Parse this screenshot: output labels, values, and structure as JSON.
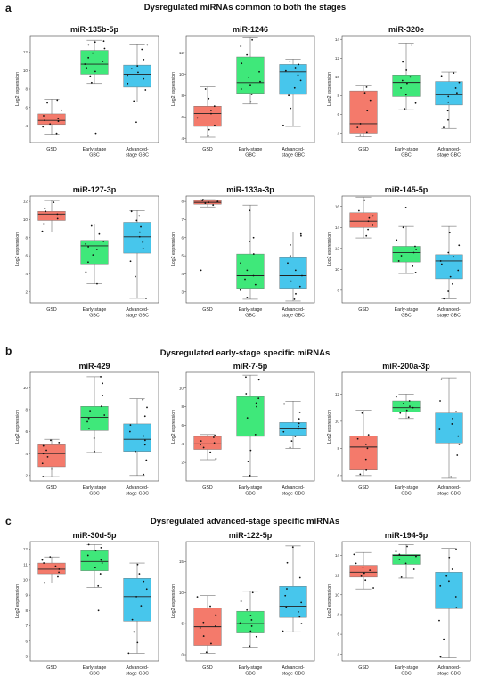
{
  "sections": [
    {
      "letter": "a",
      "title": "Dysregulated miRNAs common to both the stages"
    },
    {
      "letter": "b",
      "title": "Dysregulated early-stage specific miRNAs"
    },
    {
      "letter": "c",
      "title": "Dysregulated advanced-stage specific miRNAs"
    }
  ],
  "chart_common": {
    "ylabel": "Log2 expression",
    "categories": [
      [
        "GSD"
      ],
      [
        "Early-stage",
        "GBC"
      ],
      [
        "Advanced-",
        "stage GBC"
      ]
    ],
    "colors": {
      "GSD": "#f47a6b",
      "Early-stage GBC": "#3fe87a",
      "Advanced-stage GBC": "#47c6ec",
      "median": "#222222",
      "points": "#111111",
      "frame": "#444444"
    }
  },
  "chart_data": [
    {
      "type": "box",
      "title": "miR-135b-5p",
      "ylim": [
        2.2,
        13.8
      ],
      "yticks": [
        4,
        6,
        8,
        10,
        12
      ],
      "boxes": [
        {
          "group": "GSD",
          "min": 3.1,
          "q1": 4.15,
          "median": 4.6,
          "q3": 5.3,
          "max": 6.9,
          "points": [
            3.2,
            3.9,
            4.2,
            4.5,
            4.6,
            4.8,
            5.1,
            5.7,
            6.5,
            6.8
          ]
        },
        {
          "group": "Early-stage GBC",
          "min": 8.6,
          "q1": 9.6,
          "median": 10.7,
          "q3": 12.2,
          "max": 13.3,
          "points": [
            3.2,
            8.7,
            9.4,
            9.9,
            10.3,
            10.7,
            11.0,
            11.4,
            11.9,
            12.4,
            12.8,
            13.1,
            13.2
          ]
        },
        {
          "group": "Advanced-stage GBC",
          "min": 6.6,
          "q1": 8.2,
          "median": 9.6,
          "q3": 10.6,
          "max": 12.9,
          "points": [
            4.4,
            6.7,
            7.9,
            8.6,
            9.1,
            9.5,
            9.8,
            10.2,
            10.5,
            11.2,
            12.3,
            12.8
          ]
        }
      ]
    },
    {
      "type": "box",
      "title": "miR-1246",
      "ylim": [
        3.6,
        13.6
      ],
      "yticks": [
        4,
        6,
        8,
        10,
        12
      ],
      "boxes": [
        {
          "group": "GSD",
          "min": 4.1,
          "q1": 5.1,
          "median": 6.3,
          "q3": 7.0,
          "max": 8.8,
          "points": [
            4.2,
            4.8,
            5.2,
            5.9,
            6.3,
            6.6,
            7.0,
            7.7,
            8.6
          ]
        },
        {
          "group": "Early-stage GBC",
          "min": 7.2,
          "q1": 8.2,
          "median": 9.2,
          "q3": 11.6,
          "max": 13.4,
          "points": [
            7.4,
            8.1,
            8.6,
            9.0,
            9.3,
            9.7,
            10.2,
            11.0,
            11.8,
            12.6,
            13.2
          ]
        },
        {
          "group": "Advanced-stage GBC",
          "min": 5.1,
          "q1": 8.1,
          "median": 10.2,
          "q3": 10.9,
          "max": 11.4,
          "points": [
            5.2,
            6.8,
            8.0,
            8.7,
            9.4,
            9.9,
            10.3,
            10.6,
            10.9,
            11.2
          ]
        }
      ]
    },
    {
      "type": "box",
      "title": "miR-320e",
      "ylim": [
        3.0,
        14.4
      ],
      "yticks": [
        4,
        6,
        8,
        10,
        12,
        14
      ],
      "boxes": [
        {
          "group": "GSD",
          "min": 3.6,
          "q1": 4.0,
          "median": 5.0,
          "q3": 8.5,
          "max": 9.1,
          "points": [
            3.8,
            4.1,
            4.6,
            5.0,
            6.4,
            7.5,
            8.3,
            8.9
          ]
        },
        {
          "group": "Early-stage GBC",
          "min": 6.5,
          "q1": 7.9,
          "median": 9.4,
          "q3": 10.2,
          "max": 13.6,
          "points": [
            6.6,
            7.2,
            8.1,
            8.8,
            9.3,
            9.6,
            10.0,
            10.7,
            11.6,
            13.4
          ]
        },
        {
          "group": "Advanced-stage GBC",
          "min": 4.5,
          "q1": 7.0,
          "median": 8.1,
          "q3": 9.5,
          "max": 10.5,
          "points": [
            4.6,
            5.4,
            6.4,
            7.3,
            7.9,
            8.3,
            8.8,
            9.4,
            10.1,
            10.4
          ]
        }
      ]
    },
    {
      "type": "box",
      "title": "miR-127-3p",
      "ylim": [
        0.8,
        12.6
      ],
      "yticks": [
        2,
        4,
        6,
        8,
        10,
        12
      ],
      "boxes": [
        {
          "group": "GSD",
          "min": 8.6,
          "q1": 9.9,
          "median": 10.6,
          "q3": 10.9,
          "max": 12.1,
          "points": [
            8.7,
            9.5,
            10.1,
            10.4,
            10.6,
            10.9,
            11.2,
            11.9
          ]
        },
        {
          "group": "Early-stage GBC",
          "min": 2.9,
          "q1": 5.1,
          "median": 7.1,
          "q3": 7.7,
          "max": 9.5,
          "points": [
            2.9,
            4.2,
            5.3,
            6.1,
            6.7,
            7.0,
            7.3,
            7.6,
            8.4,
            9.3
          ]
        },
        {
          "group": "Advanced-stage GBC",
          "min": 1.3,
          "q1": 6.3,
          "median": 8.1,
          "q3": 9.7,
          "max": 11.0,
          "points": [
            1.3,
            3.7,
            5.4,
            6.8,
            7.5,
            8.1,
            8.6,
            9.2,
            9.9,
            10.4,
            10.9
          ]
        }
      ]
    },
    {
      "type": "box",
      "title": "miR-133a-3p",
      "ylim": [
        2.4,
        8.3
      ],
      "yticks": [
        3,
        4,
        5,
        6,
        7,
        8
      ],
      "boxes": [
        {
          "group": "GSD",
          "min": 7.7,
          "q1": 7.85,
          "median": 7.95,
          "q3": 8.05,
          "max": 8.1,
          "points": [
            4.2,
            7.8,
            7.9,
            7.95,
            8.0,
            8.05,
            8.1
          ]
        },
        {
          "group": "Early-stage GBC",
          "min": 2.6,
          "q1": 3.2,
          "median": 3.9,
          "q3": 5.1,
          "max": 7.8,
          "points": [
            2.7,
            3.1,
            3.4,
            3.7,
            3.9,
            4.2,
            4.6,
            5.1,
            5.8,
            6.0,
            7.5
          ]
        },
        {
          "group": "Advanced-stage GBC",
          "min": 2.5,
          "q1": 3.2,
          "median": 3.9,
          "q3": 4.9,
          "max": 6.3,
          "points": [
            2.6,
            2.9,
            3.3,
            3.6,
            3.9,
            4.2,
            4.6,
            5.0,
            5.6,
            6.1,
            6.2
          ]
        }
      ]
    },
    {
      "type": "box",
      "title": "miR-145-5p",
      "ylim": [
        6.8,
        17.0
      ],
      "yticks": [
        8,
        10,
        12,
        14,
        16
      ],
      "boxes": [
        {
          "group": "GSD",
          "min": 13.0,
          "q1": 14.0,
          "median": 14.6,
          "q3": 15.4,
          "max": 16.9,
          "points": [
            13.2,
            13.8,
            14.2,
            14.6,
            14.9,
            15.1,
            15.6,
            16.6
          ]
        },
        {
          "group": "Early-stage GBC",
          "min": 9.6,
          "q1": 10.7,
          "median": 11.6,
          "q3": 12.2,
          "max": 14.1,
          "points": [
            9.7,
            10.3,
            10.8,
            11.3,
            11.6,
            11.9,
            12.2,
            12.8,
            14.0,
            15.9
          ]
        },
        {
          "group": "Advanced-stage GBC",
          "min": 7.2,
          "q1": 9.1,
          "median": 10.8,
          "q3": 11.4,
          "max": 14.1,
          "points": [
            7.2,
            7.9,
            8.6,
            9.3,
            9.9,
            10.5,
            10.8,
            11.2,
            11.6,
            12.3,
            13.5
          ]
        }
      ]
    },
    {
      "type": "box",
      "title": "miR-429",
      "ylim": [
        1.5,
        11.4
      ],
      "yticks": [
        2,
        4,
        6,
        8,
        10
      ],
      "boxes": [
        {
          "group": "GSD",
          "min": 1.9,
          "q1": 2.8,
          "median": 4.0,
          "q3": 4.8,
          "max": 5.3,
          "points": [
            1.9,
            2.6,
            3.1,
            3.7,
            4.0,
            4.3,
            4.7,
            5.0,
            5.2
          ]
        },
        {
          "group": "Early-stage GBC",
          "min": 4.1,
          "q1": 6.1,
          "median": 7.3,
          "q3": 8.3,
          "max": 11.0,
          "points": [
            4.2,
            5.4,
            6.3,
            6.9,
            7.2,
            7.5,
            7.9,
            8.3,
            9.3,
            10.4,
            11.0
          ]
        },
        {
          "group": "Advanced-stage GBC",
          "min": 2.0,
          "q1": 4.2,
          "median": 5.3,
          "q3": 6.7,
          "max": 9.0,
          "points": [
            2.1,
            3.4,
            4.2,
            4.8,
            5.2,
            5.6,
            6.0,
            6.6,
            7.4,
            8.2,
            8.9
          ]
        }
      ]
    },
    {
      "type": "box",
      "title": "miR-7-5p",
      "ylim": [
        0.0,
        11.7
      ],
      "yticks": [
        2,
        4,
        6,
        8,
        10
      ],
      "boxes": [
        {
          "group": "GSD",
          "min": 2.3,
          "q1": 3.4,
          "median": 4.0,
          "q3": 4.8,
          "max": 5.0,
          "points": [
            2.4,
            3.1,
            3.6,
            3.9,
            4.1,
            4.3,
            4.7,
            4.9
          ]
        },
        {
          "group": "Early-stage GBC",
          "min": 0.5,
          "q1": 4.8,
          "median": 8.3,
          "q3": 9.1,
          "max": 11.4,
          "points": [
            0.6,
            2.1,
            3.3,
            5.0,
            6.8,
            8.0,
            8.4,
            8.9,
            9.4,
            10.9,
            11.2
          ]
        },
        {
          "group": "Advanced-stage GBC",
          "min": 3.5,
          "q1": 4.9,
          "median": 5.6,
          "q3": 6.3,
          "max": 8.6,
          "points": [
            3.6,
            4.3,
            4.8,
            5.3,
            5.6,
            5.9,
            6.2,
            6.7,
            7.4,
            8.3
          ]
        }
      ]
    },
    {
      "type": "box",
      "title": "miR-200a-3p",
      "ylim": [
        5.6,
        13.6
      ],
      "yticks": [
        6,
        8,
        10,
        12
      ],
      "boxes": [
        {
          "group": "GSD",
          "min": 6.0,
          "q1": 6.4,
          "median": 8.1,
          "q3": 8.9,
          "max": 10.8,
          "points": [
            6.1,
            6.4,
            7.2,
            8.0,
            8.3,
            8.7,
            9.0,
            10.6
          ]
        },
        {
          "group": "Early-stage GBC",
          "min": 10.2,
          "q1": 10.7,
          "median": 11.0,
          "q3": 11.5,
          "max": 12.0,
          "points": [
            10.3,
            10.6,
            10.8,
            11.0,
            11.1,
            11.3,
            11.5,
            11.8
          ]
        },
        {
          "group": "Advanced-stage GBC",
          "min": 5.8,
          "q1": 8.4,
          "median": 9.5,
          "q3": 10.6,
          "max": 13.2,
          "points": [
            5.9,
            7.5,
            8.3,
            8.9,
            9.4,
            9.8,
            10.2,
            10.7,
            11.5,
            13.1
          ]
        }
      ]
    },
    {
      "type": "box",
      "title": "miR-30d-5p",
      "ylim": [
        4.7,
        12.5
      ],
      "yticks": [
        5,
        6,
        7,
        8,
        9,
        10,
        11,
        12
      ],
      "boxes": [
        {
          "group": "GSD",
          "min": 9.8,
          "q1": 10.4,
          "median": 10.7,
          "q3": 11.1,
          "max": 11.5,
          "points": [
            9.8,
            10.2,
            10.5,
            10.7,
            10.9,
            11.1,
            11.3,
            11.5
          ]
        },
        {
          "group": "Early-stage GBC",
          "min": 9.5,
          "q1": 10.6,
          "median": 11.2,
          "q3": 11.9,
          "max": 12.3,
          "points": [
            8.0,
            9.6,
            10.4,
            10.8,
            11.1,
            11.3,
            11.6,
            11.9,
            12.1,
            12.3
          ]
        },
        {
          "group": "Advanced-stage GBC",
          "min": 5.2,
          "q1": 7.3,
          "median": 8.9,
          "q3": 10.1,
          "max": 11.1,
          "points": [
            5.2,
            5.9,
            6.6,
            7.4,
            8.3,
            8.9,
            9.4,
            9.9,
            10.4,
            11.0
          ]
        }
      ]
    },
    {
      "type": "box",
      "title": "miR-122-5p",
      "ylim": [
        -1.0,
        18.2
      ],
      "yticks": [
        0,
        5,
        10,
        15
      ],
      "boxes": [
        {
          "group": "GSD",
          "min": 0.2,
          "q1": 1.5,
          "median": 4.5,
          "q3": 7.5,
          "max": 9.5,
          "points": [
            0.4,
            1.8,
            3.0,
            4.3,
            4.6,
            5.2,
            6.4,
            7.8,
            9.3
          ]
        },
        {
          "group": "Early-stage GBC",
          "min": 1.2,
          "q1": 3.5,
          "median": 5.0,
          "q3": 7.0,
          "max": 10.2,
          "points": [
            1.4,
            2.9,
            3.8,
            4.6,
            5.1,
            5.6,
            6.3,
            7.2,
            8.6,
            10.0
          ]
        },
        {
          "group": "Advanced-stage GBC",
          "min": 3.7,
          "q1": 6.0,
          "median": 7.8,
          "q3": 11.0,
          "max": 17.5,
          "points": [
            3.8,
            5.0,
            6.1,
            6.9,
            7.7,
            8.4,
            9.5,
            10.6,
            12.4,
            14.8,
            17.3
          ]
        }
      ]
    },
    {
      "type": "box",
      "title": "miR-194-5p",
      "ylim": [
        3.3,
        15.4
      ],
      "yticks": [
        4,
        6,
        8,
        10,
        12,
        14
      ],
      "boxes": [
        {
          "group": "GSD",
          "min": 10.6,
          "q1": 11.8,
          "median": 12.3,
          "q3": 13.0,
          "max": 14.3,
          "points": [
            10.7,
            11.5,
            11.9,
            12.2,
            12.5,
            12.8,
            13.2,
            14.1
          ]
        },
        {
          "group": "Early-stage GBC",
          "min": 11.7,
          "q1": 13.1,
          "median": 14.0,
          "q3": 14.1,
          "max": 15.1,
          "points": [
            11.8,
            12.6,
            13.2,
            13.6,
            13.9,
            14.1,
            14.4,
            14.9
          ]
        },
        {
          "group": "Advanced-stage GBC",
          "min": 3.6,
          "q1": 8.6,
          "median": 11.2,
          "q3": 12.3,
          "max": 14.7,
          "points": [
            3.7,
            5.5,
            7.4,
            8.7,
            9.8,
            10.9,
            11.4,
            11.9,
            12.6,
            13.8,
            14.6
          ]
        }
      ]
    }
  ]
}
